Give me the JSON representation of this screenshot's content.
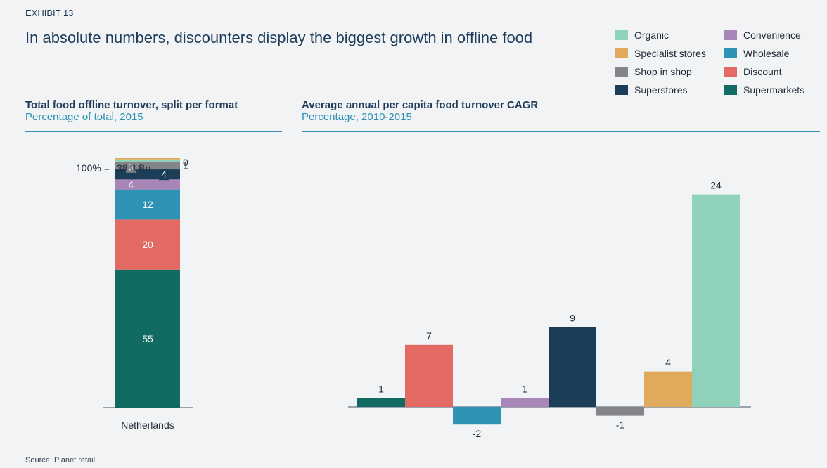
{
  "header": {
    "exhibit": "EXHIBIT 13",
    "title": "In absolute numbers, discounters display the biggest growth in offline food"
  },
  "legend": [
    {
      "label": "Organic",
      "color": "#8fd2bb"
    },
    {
      "label": "Convenience",
      "color": "#a886b8"
    },
    {
      "label": "Specialist stores",
      "color": "#dfaa5c"
    },
    {
      "label": "Wholesale",
      "color": "#2e93b5"
    },
    {
      "label": "Shop in shop",
      "color": "#838588"
    },
    {
      "label": "Discount",
      "color": "#e26a63"
    },
    {
      "label": "Superstores",
      "color": "#1b3d57"
    },
    {
      "label": "Supermarkets",
      "color": "#126b62"
    }
  ],
  "left_panel": {
    "title": "Total food offline turnover, split per format",
    "subtitle": "Percentage of total, 2015",
    "total_label": "100% =",
    "total_value": "38.3 Bn"
  },
  "right_panel": {
    "title": "Average annual per capita food turnover CAGR",
    "subtitle": "Percentage, 2010-2015"
  },
  "source": "Source: Planet retail",
  "chart_data": [
    {
      "type": "bar",
      "stacked": true,
      "categories": [
        "Netherlands"
      ],
      "series": [
        {
          "name": "Supermarkets",
          "values": [
            55
          ],
          "color": "#126b62",
          "label": "55"
        },
        {
          "name": "Discount",
          "values": [
            20
          ],
          "color": "#e26a63",
          "label": "20"
        },
        {
          "name": "Wholesale",
          "values": [
            12
          ],
          "color": "#2e93b5",
          "label": "12"
        },
        {
          "name": "Convenience",
          "values": [
            4
          ],
          "color": "#a886b8",
          "label": "4"
        },
        {
          "name": "Superstores",
          "values": [
            4
          ],
          "color": "#1b3d57",
          "label": "4"
        },
        {
          "name": "Shop in shop",
          "values": [
            3
          ],
          "color": "#838588",
          "label": "3"
        },
        {
          "name": "Organic",
          "values": [
            1
          ],
          "color": "#8fd2bb",
          "label": "1"
        },
        {
          "name": "Specialist stores",
          "values": [
            0.5
          ],
          "color": "#dfaa5c",
          "label": "0"
        }
      ],
      "ylim": [
        0,
        100
      ],
      "grid": false
    },
    {
      "type": "bar",
      "categories": [
        "Supermarkets",
        "Discount",
        "Wholesale",
        "Convenience",
        "Superstores",
        "Shop in shop",
        "Specialist stores",
        "Organic"
      ],
      "values": [
        1,
        7,
        -2,
        1,
        9,
        -1,
        4,
        24
      ],
      "labels": [
        "1",
        "7",
        "-2",
        "1",
        "9",
        "-1",
        "4",
        "24"
      ],
      "colors": [
        "#126b62",
        "#e26a63",
        "#2e93b5",
        "#a886b8",
        "#1b3d57",
        "#838588",
        "#dfaa5c",
        "#8fd2bb"
      ],
      "ylim": [
        -3.6,
        25.5
      ],
      "grid": false
    }
  ]
}
